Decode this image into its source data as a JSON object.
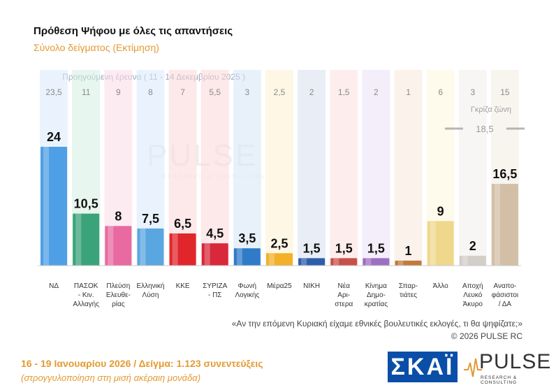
{
  "header": {
    "title": "Πρόθεση Ψήφου με όλες τις απαντήσεις",
    "subtitle": "Σύνολο δείγματος   (Εκτίμηση)"
  },
  "chart_data": {
    "type": "bar",
    "categories": [
      "ΝΔ",
      "ΠΑΣΟΚ - Κιν. Αλλαγής",
      "Πλεύση Ελευθε- ρίας",
      "Ελληνική Λύση",
      "ΚΚΕ",
      "ΣΥΡΙΖΑ - ΠΣ",
      "Φωνή Λογικής",
      "Μέρα25",
      "ΝΙΚΗ",
      "Νέα Αρι- στερα",
      "Κίνημα Δημο- κρατίας",
      "Σπαρ- τιάτες",
      "Άλλο",
      "Αποχή Λευκό Άκυρο",
      "Αναπο- φάσιστοι / ΔΑ"
    ],
    "category_lines": [
      [
        "ΝΔ"
      ],
      [
        "ΠΑΣΟΚ",
        "- Κιν.",
        "Αλλαγής"
      ],
      [
        "Πλεύση",
        "Ελευθε-",
        "ρίας"
      ],
      [
        "Ελληνική",
        "Λύση"
      ],
      [
        "ΚΚΕ"
      ],
      [
        "ΣΥΡΙΖΑ",
        "- ΠΣ"
      ],
      [
        "Φωνή",
        "Λογικής"
      ],
      [
        "Μέρα25"
      ],
      [
        "ΝΙΚΗ"
      ],
      [
        "Νέα",
        "Αρι-",
        "στερα"
      ],
      [
        "Κίνημα",
        "Δημο-",
        "κρατίας"
      ],
      [
        "Σπαρ-",
        "τιάτες"
      ],
      [
        "Άλλο"
      ],
      [
        "Αποχή",
        "Λευκό",
        "Άκυρο"
      ],
      [
        "Αναπο-",
        "φάσιστοι",
        "/ ΔΑ"
      ]
    ],
    "values": [
      24,
      10.5,
      8,
      7.5,
      6.5,
      4.5,
      3.5,
      2.5,
      1.5,
      1.5,
      1.5,
      1,
      9,
      2,
      16.5
    ],
    "value_labels": [
      "24",
      "10,5",
      "8",
      "7,5",
      "6,5",
      "4,5",
      "3,5",
      "2,5",
      "1,5",
      "1,5",
      "1,5",
      "1",
      "9",
      "2",
      "16,5"
    ],
    "previous_label": "Προηγούμενη έρευνα ( 11 - 14 Δεκεμβρίου 2025 )",
    "previous_values": [
      "23,5",
      "11",
      "9",
      "8",
      "7",
      "5,5",
      "3",
      "2,5",
      "2",
      "1,5",
      "2",
      "1",
      "6",
      "3",
      "15"
    ],
    "grey_zone": {
      "label": "Γκρίζα ζώνη",
      "value": "18,5"
    },
    "colors": [
      "#4f9fe6",
      "#3aa37a",
      "#e86aa0",
      "#5aa6e0",
      "#e0262b",
      "#d8283a",
      "#2f7bc8",
      "#f2b129",
      "#2f5ea8",
      "#c8504a",
      "#9b6fc2",
      "#c07a3a",
      "#efd88c",
      "#d3cec7",
      "#d3bfa6"
    ],
    "bg_colors": [
      "#d8e9fb",
      "#d4efe2",
      "#fbdbe8",
      "#d8e9fb",
      "#fbd7d8",
      "#fbd7d8",
      "#d6e6f6",
      "#fdf0d2",
      "#d7e0ef",
      "#fbe0de",
      "#e9e0f4",
      "#f7e8dc",
      "#fdf6dd",
      "#f1efec",
      "#f3ece2"
    ],
    "ylim": [
      0,
      25
    ]
  },
  "footer": {
    "question": "«Αν την επόμενη Κυριακή είχαμε εθνικές βουλευτικές εκλογές, τι θα ψηφίζατε;»",
    "copyright": "©  2026  PULSE RC",
    "dates": "16 - 19 Ιανουαρίου 2026  /  Δείγμα:  1.123 συνεντεύξεις",
    "rounding": "(στρογγυλοποίηση στη μισή ακέραιη μονάδα)"
  },
  "logos": {
    "skai": "ΣΚΑΪ",
    "pulse": "PULSE",
    "pulse_tag": "RESEARCH & CONSULTING"
  }
}
